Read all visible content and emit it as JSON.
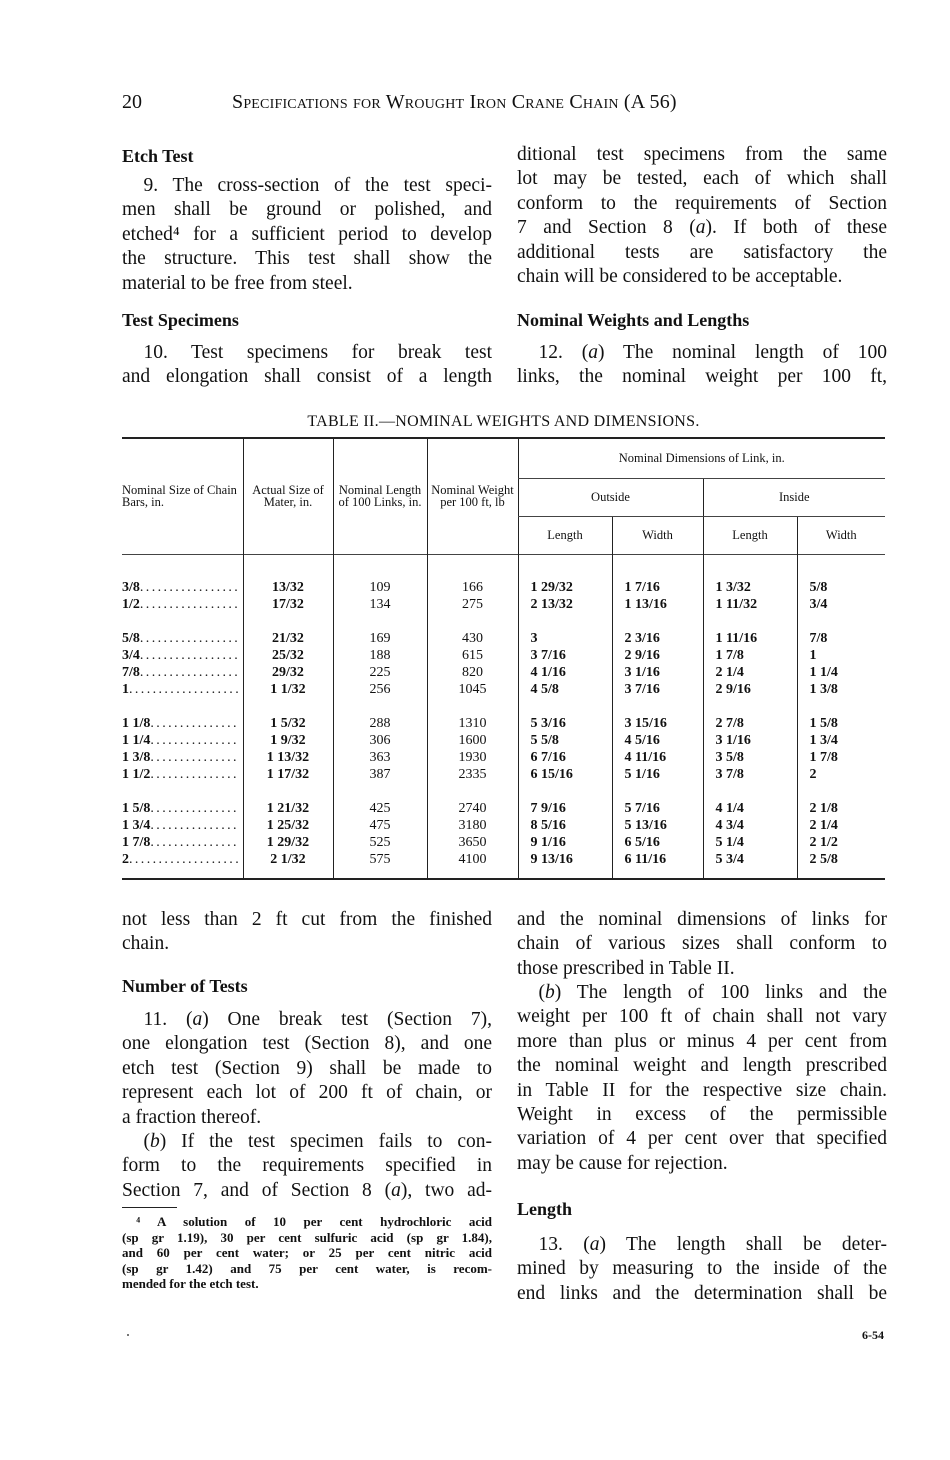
{
  "header": {
    "page_number": "20",
    "running_title": "Specifications for Wrought Iron Crane Chain (A 56)"
  },
  "top_left": {
    "heading_etch": "Etch Test",
    "p9": [
      "9. The cross-section of the test speci-",
      "men shall be ground or polished, and",
      "etched⁴ for a sufficient period to develop",
      "the structure. This test shall show the",
      "material to be free from steel."
    ],
    "heading_specimens": "Test Specimens",
    "p10": [
      "10. Test specimens for break test",
      "and elongation shall consist of a length"
    ]
  },
  "top_right": {
    "p_cont": [
      "ditional test specimens from the same",
      "lot may be tested, each of which shall",
      "conform to the requirements of Section",
      "7 and Section 8 (a). If both of these",
      "additional tests are satisfactory the",
      "chain will be considered to be acceptable."
    ],
    "heading_nominal": "Nominal Weights and Lengths",
    "p12a": [
      "12. (a) The nominal length of 100",
      "links, the nominal weight per 100 ft,"
    ]
  },
  "table": {
    "title": "TABLE II.—NOMINAL WEIGHTS AND DIMENSIONS.",
    "headers": {
      "size": "Nominal Size of Chain Bars, in.",
      "actual": "Actual Size of Mater, in.",
      "length": "Nominal Length of 100 Links, in.",
      "weight": "Nominal Weight per 100 ft, lb",
      "dims": "Nominal Dimensions of Link, in.",
      "outside": "Outside",
      "inside": "Inside",
      "out_length": "Length",
      "out_width": "Width",
      "in_length": "Length",
      "in_width": "Width"
    },
    "groups": [
      [
        [
          "3/8",
          "13/32",
          "109",
          "166",
          "1 29/32",
          "1 7/16",
          "1 3/32",
          "5/8"
        ],
        [
          "1/2",
          "17/32",
          "134",
          "275",
          "2 13/32",
          "1 13/16",
          "1 11/32",
          "3/4"
        ]
      ],
      [
        [
          "5/8",
          "21/32",
          "169",
          "430",
          "3",
          "2 3/16",
          "1 11/16",
          "7/8"
        ],
        [
          "3/4",
          "25/32",
          "188",
          "615",
          "3 7/16",
          "2 9/16",
          "1 7/8",
          "1"
        ],
        [
          "7/8",
          "29/32",
          "225",
          "820",
          "4 1/16",
          "3 1/16",
          "2 1/4",
          "1 1/4"
        ],
        [
          "1",
          "1 1/32",
          "256",
          "1045",
          "4 5/8",
          "3 7/16",
          "2 9/16",
          "1 3/8"
        ]
      ],
      [
        [
          "1 1/8",
          "1 5/32",
          "288",
          "1310",
          "5 3/16",
          "3 15/16",
          "2 7/8",
          "1 5/8"
        ],
        [
          "1 1/4",
          "1 9/32",
          "306",
          "1600",
          "5 5/8",
          "4 5/16",
          "3 1/16",
          "1 3/4"
        ],
        [
          "1 3/8",
          "1 13/32",
          "363",
          "1930",
          "6 7/16",
          "4 11/16",
          "3 5/8",
          "1 7/8"
        ],
        [
          "1 1/2",
          "1 17/32",
          "387",
          "2335",
          "6 15/16",
          "5 1/16",
          "3 7/8",
          "2"
        ]
      ],
      [
        [
          "1 5/8",
          "1 21/32",
          "425",
          "2740",
          "7 9/16",
          "5 7/16",
          "4 1/4",
          "2 1/8"
        ],
        [
          "1 3/4",
          "1 25/32",
          "475",
          "3180",
          "8 5/16",
          "5 13/16",
          "4 3/4",
          "2 1/4"
        ],
        [
          "1 7/8",
          "1 29/32",
          "525",
          "3650",
          "9 1/16",
          "6 5/16",
          "5 1/4",
          "2 1/2"
        ],
        [
          "2",
          "2 1/32",
          "575",
          "4100",
          "9 13/16",
          "6 11/16",
          "5 3/4",
          "2 5/8"
        ]
      ]
    ]
  },
  "bottom_left": {
    "p_cont": [
      "not less than 2 ft cut from the finished",
      "chain."
    ],
    "heading_tests": "Number of Tests",
    "p11a": [
      "11. (a) One break test (Section 7),",
      "one elongation test (Section 8), and one",
      "etch test (Section 9) shall be made to",
      "represent each lot of 200 ft of chain, or",
      "a fraction thereof."
    ],
    "p11b": [
      "(b) If the test specimen fails to con-",
      "form to the requirements specified in",
      "Section 7, and of Section 8 (a), two ad-"
    ],
    "footnote": [
      "⁴ A solution of 10 per cent hydrochloric acid",
      "(sp gr 1.19), 30 per cent sulfuric acid (sp gr 1.84),",
      "and 60 per cent water; or 25 per cent nitric acid",
      "(sp gr 1.42) and 75 per cent water, is recom-",
      "mended for the etch test."
    ]
  },
  "bottom_right": {
    "p_cont": [
      "and the nominal dimensions of links for",
      "chain of various sizes shall conform to",
      "those prescribed in Table II."
    ],
    "p12b": [
      "(b) The length of 100 links and the",
      "weight per 100 ft of chain shall not vary",
      "more than plus or minus 4 per cent from",
      "the nominal weight and length prescribed",
      "in Table II for the respective size chain.",
      "Weight in excess of the permissible",
      "variation of 4 per cent over that specified",
      "may be cause for rejection."
    ],
    "heading_length": "Length",
    "p13": [
      "13. (a) The length shall be deter-",
      "mined by measuring to the inside of the",
      "end links and the determination shall be"
    ]
  },
  "page_id": "6-54"
}
